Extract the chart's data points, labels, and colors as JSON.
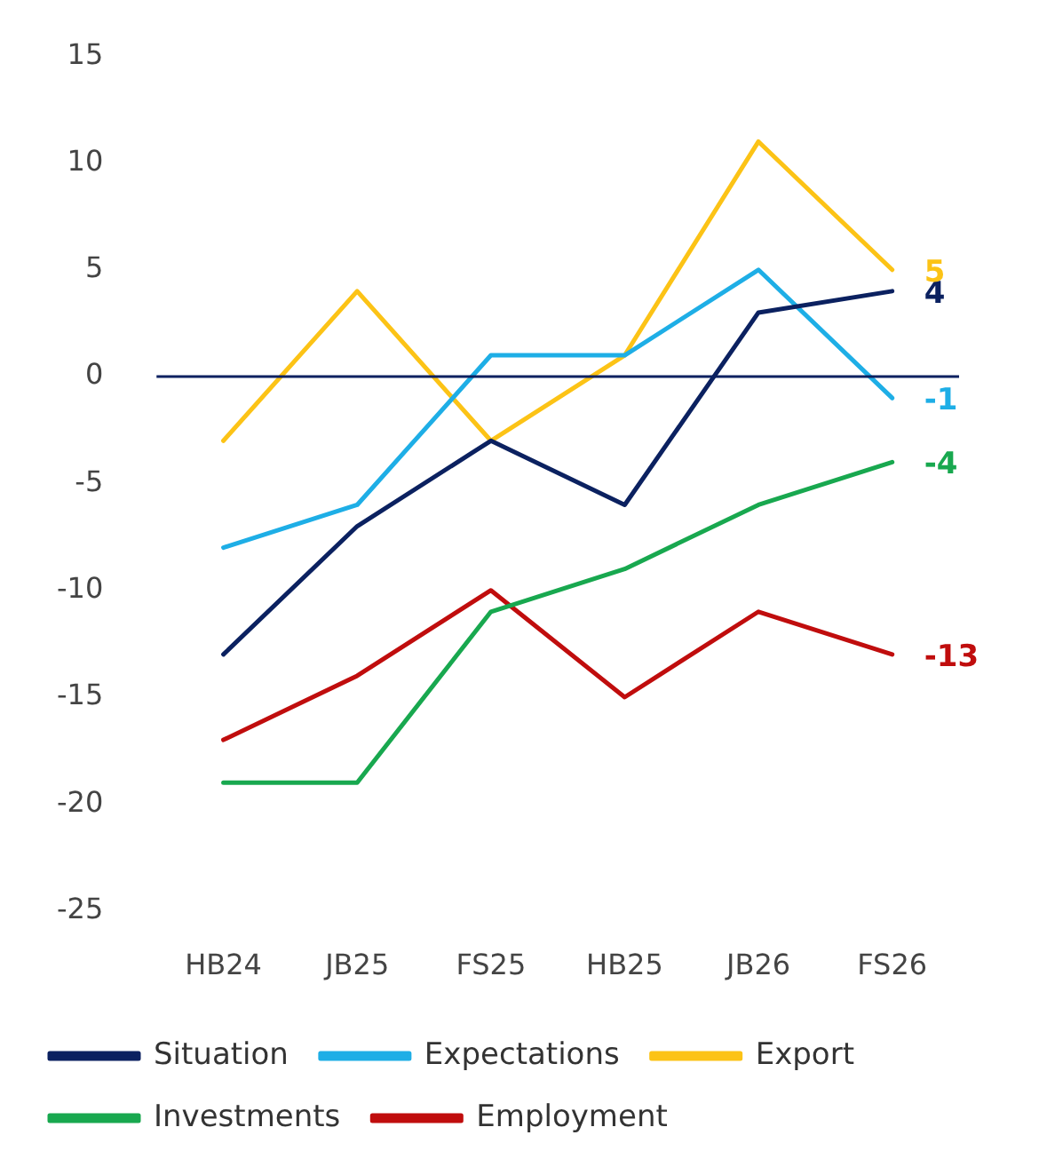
{
  "chart_data": {
    "type": "line",
    "categories": [
      "HB24",
      "JB25",
      "FS25",
      "HB25",
      "JB26",
      "FS26"
    ],
    "series": [
      {
        "name": "Situation",
        "color": "#0b2160",
        "values": [
          -13,
          -7,
          -3,
          -6,
          3,
          4
        ],
        "value_labels": [
          null,
          null,
          null,
          null,
          null,
          "4"
        ]
      },
      {
        "name": "Expectations",
        "color": "#1eaee6",
        "values": [
          -8,
          -6,
          1,
          1,
          5,
          -1
        ],
        "value_labels": [
          null,
          null,
          null,
          null,
          null,
          "-1"
        ]
      },
      {
        "name": "Export",
        "color": "#fcc316",
        "values": [
          -3,
          4,
          -3,
          1,
          11,
          5
        ],
        "value_labels": [
          null,
          null,
          null,
          null,
          null,
          "5"
        ]
      },
      {
        "name": "Investments",
        "color": "#18a84f",
        "values": [
          -19,
          -19,
          -11,
          -9,
          -6,
          -4
        ],
        "value_labels": [
          null,
          null,
          null,
          null,
          null,
          "-4"
        ]
      },
      {
        "name": "Employment",
        "color": "#c00d0d",
        "values": [
          -17,
          -14,
          -10,
          -15,
          -11,
          -13
        ],
        "value_labels": [
          null,
          null,
          null,
          null,
          null,
          "-13"
        ]
      }
    ],
    "ylim": [
      -25,
      15
    ],
    "yticks": [
      -25,
      -20,
      -15,
      -10,
      -5,
      0,
      5,
      10,
      15
    ],
    "ref_lines": [
      {
        "axis": "y",
        "value": 0,
        "color": "#0b2160"
      }
    ],
    "grid": false,
    "legend": "bottom",
    "marker": "none",
    "line_style": "solid"
  }
}
